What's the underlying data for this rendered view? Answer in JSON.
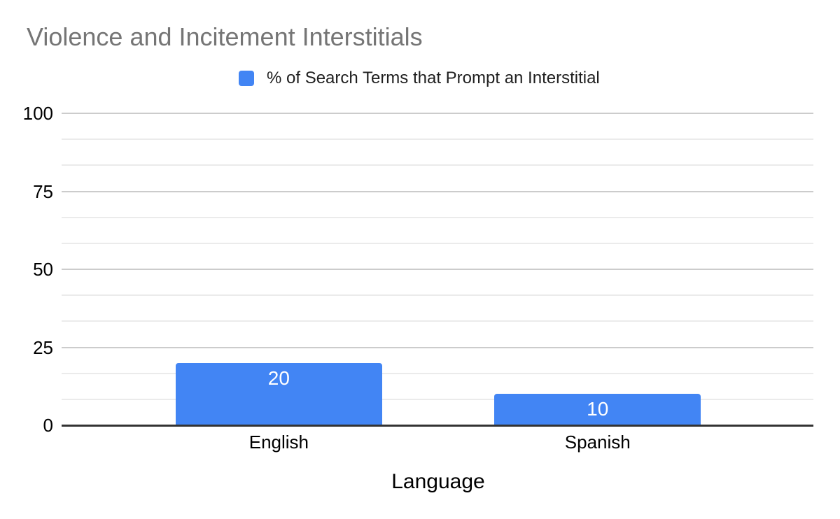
{
  "chart_data": {
    "type": "bar",
    "title": "Violence and Incitement Interstitials",
    "categories": [
      "English",
      "Spanish"
    ],
    "series": [
      {
        "name": "% of Search Terms that Prompt an Interstitial",
        "values": [
          20,
          10
        ]
      }
    ],
    "xlabel": "Language",
    "ylabel": "",
    "ylim": [
      0,
      100
    ],
    "yticks": [
      0,
      25,
      50,
      75,
      100
    ],
    "minor_gridlines_between_majors": 2,
    "grid": true,
    "legend_position": "top",
    "value_labels_shown": true,
    "colors": {
      "series": "#4285f4",
      "value_label": "#ffffff",
      "title_text": "#757575",
      "axis_text": "#000000",
      "legend_text": "#1f1f1f",
      "major_gridline": "#cccccc",
      "minor_gridline": "#ebebeb",
      "axis_baseline": "#333333",
      "background": "#ffffff"
    }
  }
}
